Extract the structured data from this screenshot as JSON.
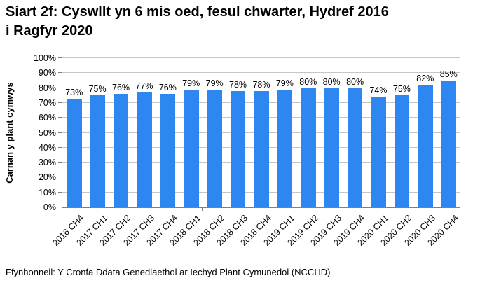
{
  "title": "Siart 2f: Cyswllt yn 6 mis oed, fesul chwarter, Hydref 2016 i Ragfyr 2020",
  "title_lines": [
    "Siart 2f: Cyswllt yn 6 mis oed, fesul chwarter, Hydref 2016",
    "i Ragfyr 2020"
  ],
  "footer": {
    "source": "Ffynhonnell: Y Cronfa Ddata Genedlaethol ar Iechyd Plant Cymunedol (NCCHD)"
  },
  "chart_data": {
    "type": "bar",
    "title": "Siart 2f: Cyswllt yn 6 mis oed, fesul chwarter, Hydref 2016 i Ragfyr 2020",
    "xlabel": "",
    "ylabel": "Carnan y plant cymwys",
    "categories": [
      "2016 CH4",
      "2017 CH1",
      "2017 CH2",
      "2017 CH3",
      "2017 CH4",
      "2018 CH1",
      "2018 CH2",
      "2018 CH3",
      "2018 CH4",
      "2019 CH1",
      "2019 CH2",
      "2019 CH3",
      "2019 CH4",
      "2020 CH1",
      "2020 CH2",
      "2020 CH3",
      "2020 CH4"
    ],
    "values": [
      73,
      75,
      76,
      77,
      76,
      79,
      79,
      78,
      78,
      79,
      80,
      80,
      80,
      74,
      75,
      82,
      85
    ],
    "data_labels": [
      "73%",
      "75%",
      "76%",
      "77%",
      "76%",
      "79%",
      "79%",
      "78%",
      "78%",
      "79%",
      "80%",
      "80%",
      "80%",
      "74%",
      "75%",
      "82%",
      "85%"
    ],
    "ylim": [
      0,
      100
    ],
    "ytick_step": 10,
    "ytick_labels": [
      "0%",
      "10%",
      "20%",
      "30%",
      "40%",
      "50%",
      "60%",
      "70%",
      "80%",
      "90%",
      "100%"
    ],
    "grid": true,
    "legend": "none",
    "xtick_rotation": -45,
    "bar_color": "#2E86F0",
    "axis_color": "#7F7F7F",
    "gridline_color": "#C6C6C6",
    "text_color": "#000000"
  }
}
